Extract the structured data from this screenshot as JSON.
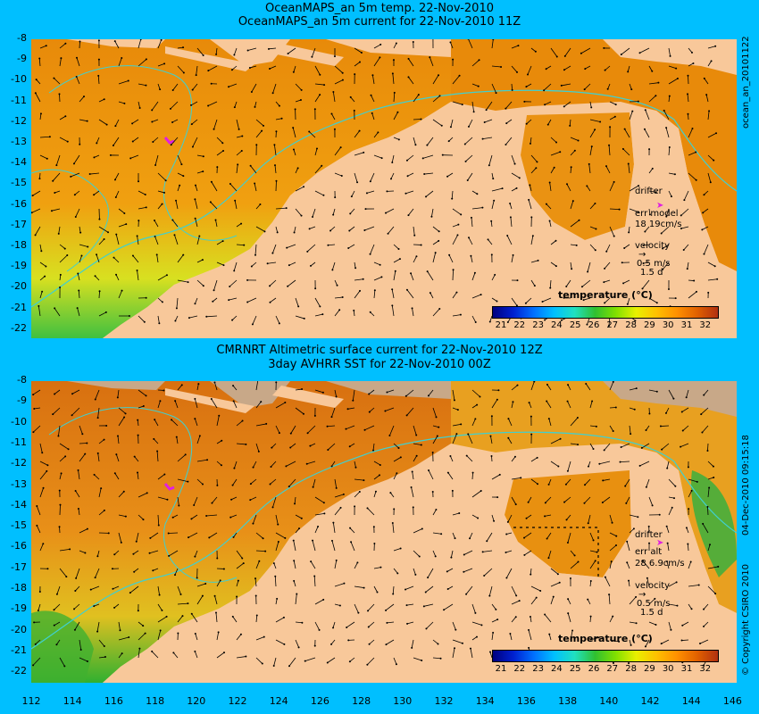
{
  "top": {
    "title1": "OceanMAPS_an 5m temp. 22-Nov-2010",
    "title2": "OceanMAPS_an 5m current for 22-Nov-2010 11Z",
    "side_label": "ocean_an_20101122",
    "drifter_label": "drifter",
    "err_label": "err model",
    "err_values": "18 19cm/s",
    "velocity_label": "velocity",
    "velocity_scale": "0.5 m/s",
    "velocity_days": "1.5 d"
  },
  "bottom": {
    "title1": "CMRNRT Altimetric surface current for 22-Nov-2010 12Z",
    "title2": "3day AVHRR SST for 22-Nov-2010 00Z",
    "side_label": "04-Dec-2010 09:15:18",
    "copyright": "© Copyright CSIRO 2010",
    "drifter_label": "drifter",
    "err_label": "err alt",
    "err_values": "28 6.9cm/s",
    "velocity_label": "velocity",
    "velocity_scale": "0.5 m/s",
    "velocity_days": "1.5 d"
  },
  "colorbar": {
    "title": "temperature (°C)",
    "ticks": [
      "21",
      "22",
      "23",
      "24",
      "25",
      "26",
      "27",
      "28",
      "29",
      "30",
      "31",
      "32"
    ],
    "colors": [
      "#00007f",
      "#0020d0",
      "#0070ff",
      "#00c0ff",
      "#20e0c0",
      "#30c030",
      "#80e000",
      "#e8f000",
      "#ffc000",
      "#ff9000",
      "#e06000",
      "#b03010"
    ]
  },
  "y_axis_labels": [
    "-8",
    "-9",
    "-10",
    "-11",
    "-12",
    "-13",
    "-14",
    "-15",
    "-16",
    "-17",
    "-18",
    "-19",
    "-20",
    "-21",
    "-22"
  ],
  "x_axis_labels": [
    "112",
    "114",
    "116",
    "118",
    "120",
    "122",
    "124",
    "126",
    "128",
    "130",
    "132",
    "134",
    "136",
    "138",
    "140",
    "142",
    "144",
    "146"
  ],
  "colors": {
    "background": "#00bfff",
    "land": "#f8c89a",
    "ocean_warm": "#e8900a",
    "isobath": "#40d0d0",
    "drifter": "#e020e0"
  }
}
